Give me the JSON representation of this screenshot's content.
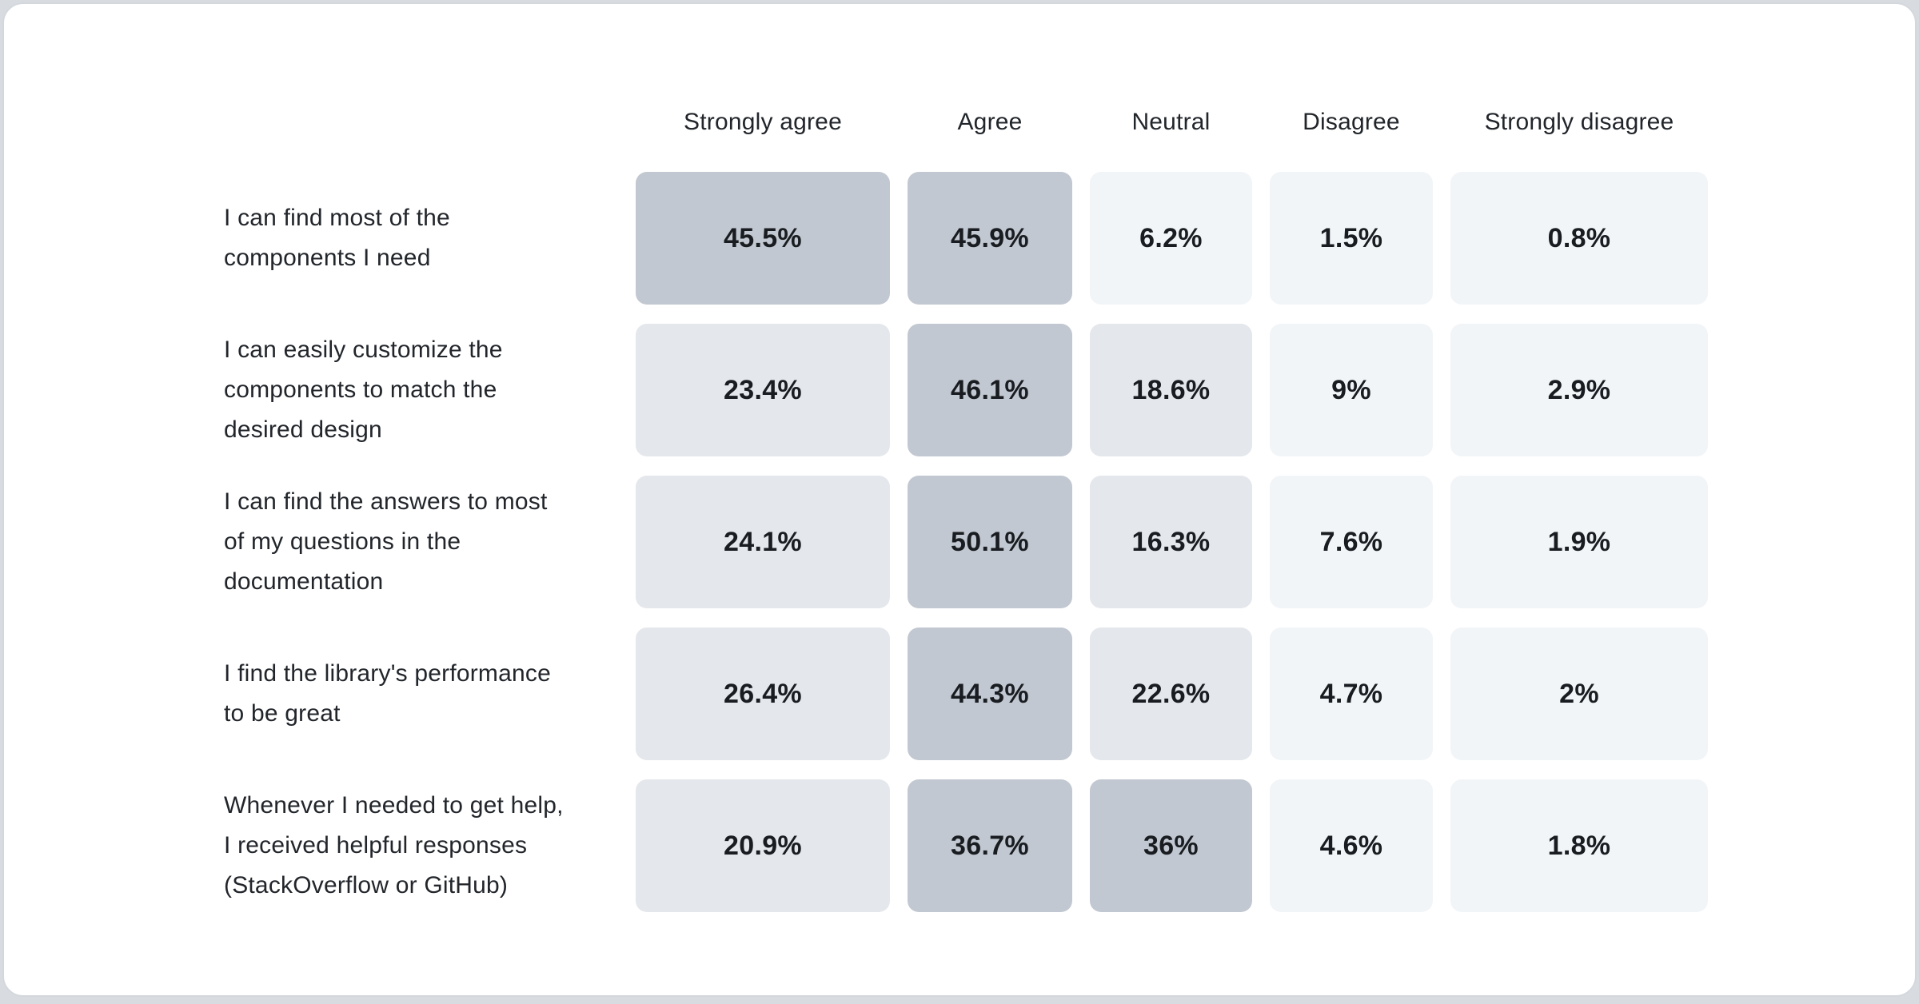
{
  "page": {
    "background_color": "#d8dce0",
    "card_background": "#ffffff",
    "card_border_color": "#d4d8dd"
  },
  "chart_data": {
    "type": "heatmap",
    "title": "",
    "legend_position": "none",
    "grid": false,
    "columns": [
      "Strongly agree",
      "Agree",
      "Neutral",
      "Disagree",
      "Strongly disagree"
    ],
    "rows": [
      {
        "label": "I can find most of the\ncomponents I need",
        "values": [
          "45.5%",
          "45.9%",
          "6.2%",
          "1.5%",
          "0.8%"
        ]
      },
      {
        "label": "I can easily customize the\ncomponents to match the\ndesired design",
        "values": [
          "23.4%",
          "46.1%",
          "18.6%",
          "9%",
          "2.9%"
        ]
      },
      {
        "label": "I can find the answers to most\nof my questions in the\ndocumentation",
        "values": [
          "24.1%",
          "50.1%",
          "16.3%",
          "7.6%",
          "1.9%"
        ]
      },
      {
        "label": "I find the library's performance\nto be great",
        "values": [
          "26.4%",
          "44.3%",
          "22.6%",
          "4.7%",
          "2%"
        ]
      },
      {
        "label": "Whenever I needed to get help,\nI received helpful responses\n(StackOverflow or GitHub)",
        "values": [
          "20.9%",
          "36.7%",
          "36%",
          "4.6%",
          "1.8%"
        ]
      }
    ],
    "heatmap": {
      "low_color": "#f2f5f8",
      "mid_color": "#e4e7eb",
      "high_color": "#c2c8d1",
      "mid_threshold": 10,
      "high_threshold": 30
    }
  }
}
